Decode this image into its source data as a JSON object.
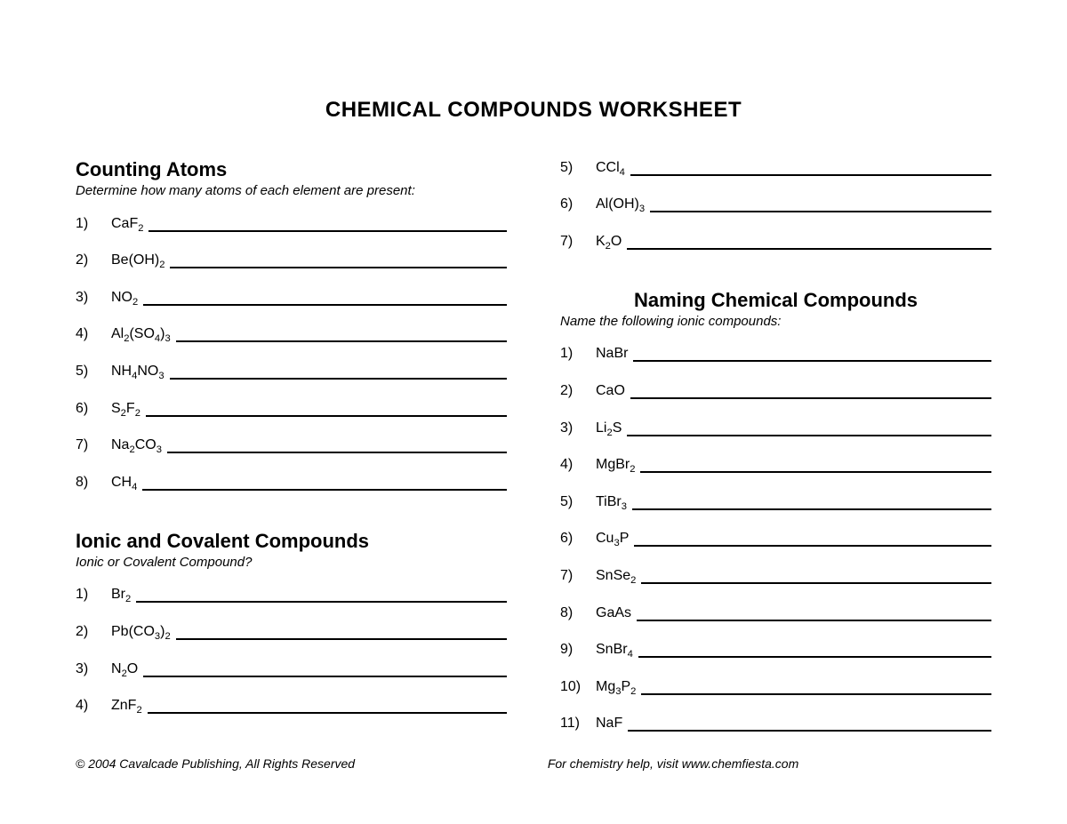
{
  "title": "CHEMICAL COMPOUNDS WORKSHEET",
  "sections": {
    "counting": {
      "heading": "Counting Atoms",
      "sub": "Determine how many atoms of each element are present:",
      "items": [
        {
          "n": "1)",
          "f": "CaF<sub>2</sub>"
        },
        {
          "n": "2)",
          "f": "Be(OH)<sub>2</sub>"
        },
        {
          "n": "3)",
          "f": "NO<sub>2</sub>"
        },
        {
          "n": "4)",
          "f": "Al<sub>2</sub>(SO<sub>4</sub>)<sub>3</sub>"
        },
        {
          "n": "5)",
          "f": "NH<sub>4</sub>NO<sub>3</sub>"
        },
        {
          "n": "6)",
          "f": "S<sub>2</sub>F<sub>2</sub>"
        },
        {
          "n": "7)",
          "f": "Na<sub>2</sub>CO<sub>3</sub>"
        },
        {
          "n": "8)",
          "f": "CH<sub>4</sub>"
        }
      ]
    },
    "ionic_covalent": {
      "heading": "Ionic and Covalent Compounds",
      "sub": "Ionic or Covalent Compound?",
      "items": [
        {
          "n": "1)",
          "f": "Br<sub>2</sub>"
        },
        {
          "n": "2)",
          "f": "Pb(CO<sub>3</sub>)<sub>2</sub>"
        },
        {
          "n": "3)",
          "f": "N<sub>2</sub>O"
        },
        {
          "n": "4)",
          "f": "ZnF<sub>2</sub>"
        }
      ]
    },
    "ionic_covalent_cont": {
      "items": [
        {
          "n": "5)",
          "f": "CCl<sub>4</sub>"
        },
        {
          "n": "6)",
          "f": "Al(OH)<sub>3</sub>"
        },
        {
          "n": "7)",
          "f": "K<sub>2</sub>O"
        }
      ]
    },
    "naming": {
      "heading": "Naming Chemical Compounds",
      "sub": "Name the following ionic compounds:",
      "items": [
        {
          "n": "1)",
          "f": "NaBr"
        },
        {
          "n": "2)",
          "f": "CaO"
        },
        {
          "n": "3)",
          "f": "Li<sub>2</sub>S"
        },
        {
          "n": "4)",
          "f": "MgBr<sub>2</sub>"
        },
        {
          "n": "5)",
          "f": "TiBr<sub>3</sub>"
        },
        {
          "n": "6)",
          "f": "Cu<sub>3</sub>P"
        },
        {
          "n": "7)",
          "f": "SnSe<sub>2</sub>"
        },
        {
          "n": "8)",
          "f": "GaAs"
        },
        {
          "n": "9)",
          "f": "SnBr<sub>4</sub>"
        },
        {
          "n": "10)",
          "f": "Mg<sub>3</sub>P<sub>2</sub>"
        },
        {
          "n": "11)",
          "f": "NaF"
        }
      ]
    }
  },
  "footer": {
    "left": "© 2004 Cavalcade Publishing, All Rights Reserved",
    "right": "For chemistry help, visit www.chemfiesta.com"
  }
}
